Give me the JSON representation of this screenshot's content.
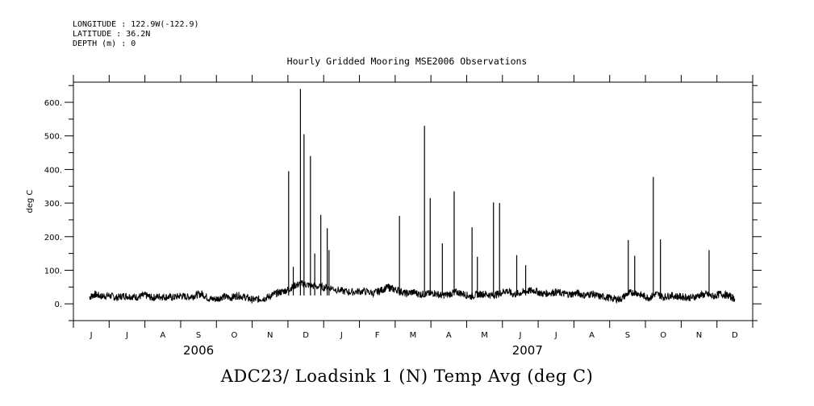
{
  "header": {
    "longitude": "LONGITUDE : 122.9W(-122.9)",
    "latitude": "LATITUDE : 36.2N",
    "depth": "DEPTH (m) : 0"
  },
  "chart_data": {
    "type": "line",
    "title": "Hourly Gridded Mooring MSE2006 Observations",
    "ylabel": "deg C",
    "xlabel": "",
    "caption": "ADC23/ Loadsink 1 (N) Temp Avg (deg C)",
    "ylim": [
      -50,
      660
    ],
    "yticks": [
      0,
      100,
      200,
      300,
      400,
      500,
      600
    ],
    "ytick_labels": [
      "0.",
      "100.",
      "200.",
      "300.",
      "400.",
      "500.",
      "600."
    ],
    "x_months": [
      "J",
      "J",
      "A",
      "S",
      "O",
      "N",
      "D",
      "J",
      "F",
      "M",
      "A",
      "M",
      "J",
      "J",
      "A",
      "S",
      "O",
      "N",
      "D"
    ],
    "x_years": [
      "2006",
      "2007"
    ],
    "x_unit": "months since 2006-06-01",
    "xlim": [
      0,
      19
    ],
    "grid": false,
    "series": [
      {
        "x": [
          0.45,
          0.6,
          0.8,
          1.0,
          1.2,
          1.4,
          1.6,
          1.8,
          2.0,
          2.2,
          2.4,
          2.6,
          2.8,
          3.0,
          3.2,
          3.4,
          3.6,
          3.8,
          4.0,
          4.2,
          4.4,
          4.6,
          4.8,
          5.0,
          5.2,
          5.4,
          5.6,
          5.8,
          6.0,
          6.2,
          6.4,
          6.6,
          6.9,
          7.2,
          7.5,
          7.8,
          8.1,
          8.4,
          8.6,
          8.8,
          8.9,
          9.1,
          9.3,
          9.5,
          9.7,
          9.9,
          10.1,
          10.3,
          10.5,
          10.7,
          10.9,
          11.1,
          11.3,
          11.5,
          11.7,
          11.9,
          12.1,
          12.3,
          12.5,
          12.7,
          12.9,
          13.1,
          13.3,
          13.5,
          13.7,
          13.9,
          14.1,
          14.3,
          14.5,
          14.7,
          14.9,
          15.1,
          15.3,
          15.5,
          15.7,
          15.9,
          16.1,
          16.3,
          16.5,
          16.7,
          16.9,
          17.1,
          17.3,
          17.5,
          17.7,
          17.9,
          18.1,
          18.3,
          18.5
        ],
        "y": [
          20,
          28,
          22,
          25,
          18,
          24,
          22,
          20,
          26,
          18,
          22,
          21,
          19,
          24,
          20,
          25,
          30,
          15,
          14,
          22,
          18,
          25,
          20,
          12,
          14,
          18,
          28,
          35,
          42,
          55,
          60,
          55,
          50,
          48,
          38,
          35,
          38,
          32,
          40,
          50,
          45,
          40,
          30,
          35,
          28,
          30,
          32,
          25,
          28,
          35,
          30,
          22,
          28,
          30,
          25,
          30,
          40,
          28,
          32,
          38,
          40,
          30,
          32,
          35,
          30,
          28,
          32,
          25,
          30,
          22,
          20,
          15,
          14,
          30,
          35,
          25,
          18,
          30,
          20,
          25,
          22,
          20,
          18,
          25,
          28,
          22,
          30,
          25,
          15
        ],
        "spikes": [
          {
            "x": 6.02,
            "y": 395
          },
          {
            "x": 6.15,
            "y": 110
          },
          {
            "x": 6.35,
            "y": 640
          },
          {
            "x": 6.45,
            "y": 505
          },
          {
            "x": 6.63,
            "y": 440
          },
          {
            "x": 6.75,
            "y": 150
          },
          {
            "x": 6.92,
            "y": 265
          },
          {
            "x": 7.1,
            "y": 225
          },
          {
            "x": 7.15,
            "y": 160
          },
          {
            "x": 9.12,
            "y": 262
          },
          {
            "x": 9.82,
            "y": 530
          },
          {
            "x": 9.98,
            "y": 315
          },
          {
            "x": 10.32,
            "y": 180
          },
          {
            "x": 10.65,
            "y": 335
          },
          {
            "x": 11.15,
            "y": 228
          },
          {
            "x": 11.3,
            "y": 140
          },
          {
            "x": 11.75,
            "y": 302
          },
          {
            "x": 11.92,
            "y": 300
          },
          {
            "x": 12.4,
            "y": 145
          },
          {
            "x": 12.65,
            "y": 115
          },
          {
            "x": 15.52,
            "y": 190
          },
          {
            "x": 15.7,
            "y": 143
          },
          {
            "x": 16.22,
            "y": 378
          },
          {
            "x": 16.42,
            "y": 192
          },
          {
            "x": 17.78,
            "y": 160
          }
        ]
      }
    ]
  }
}
